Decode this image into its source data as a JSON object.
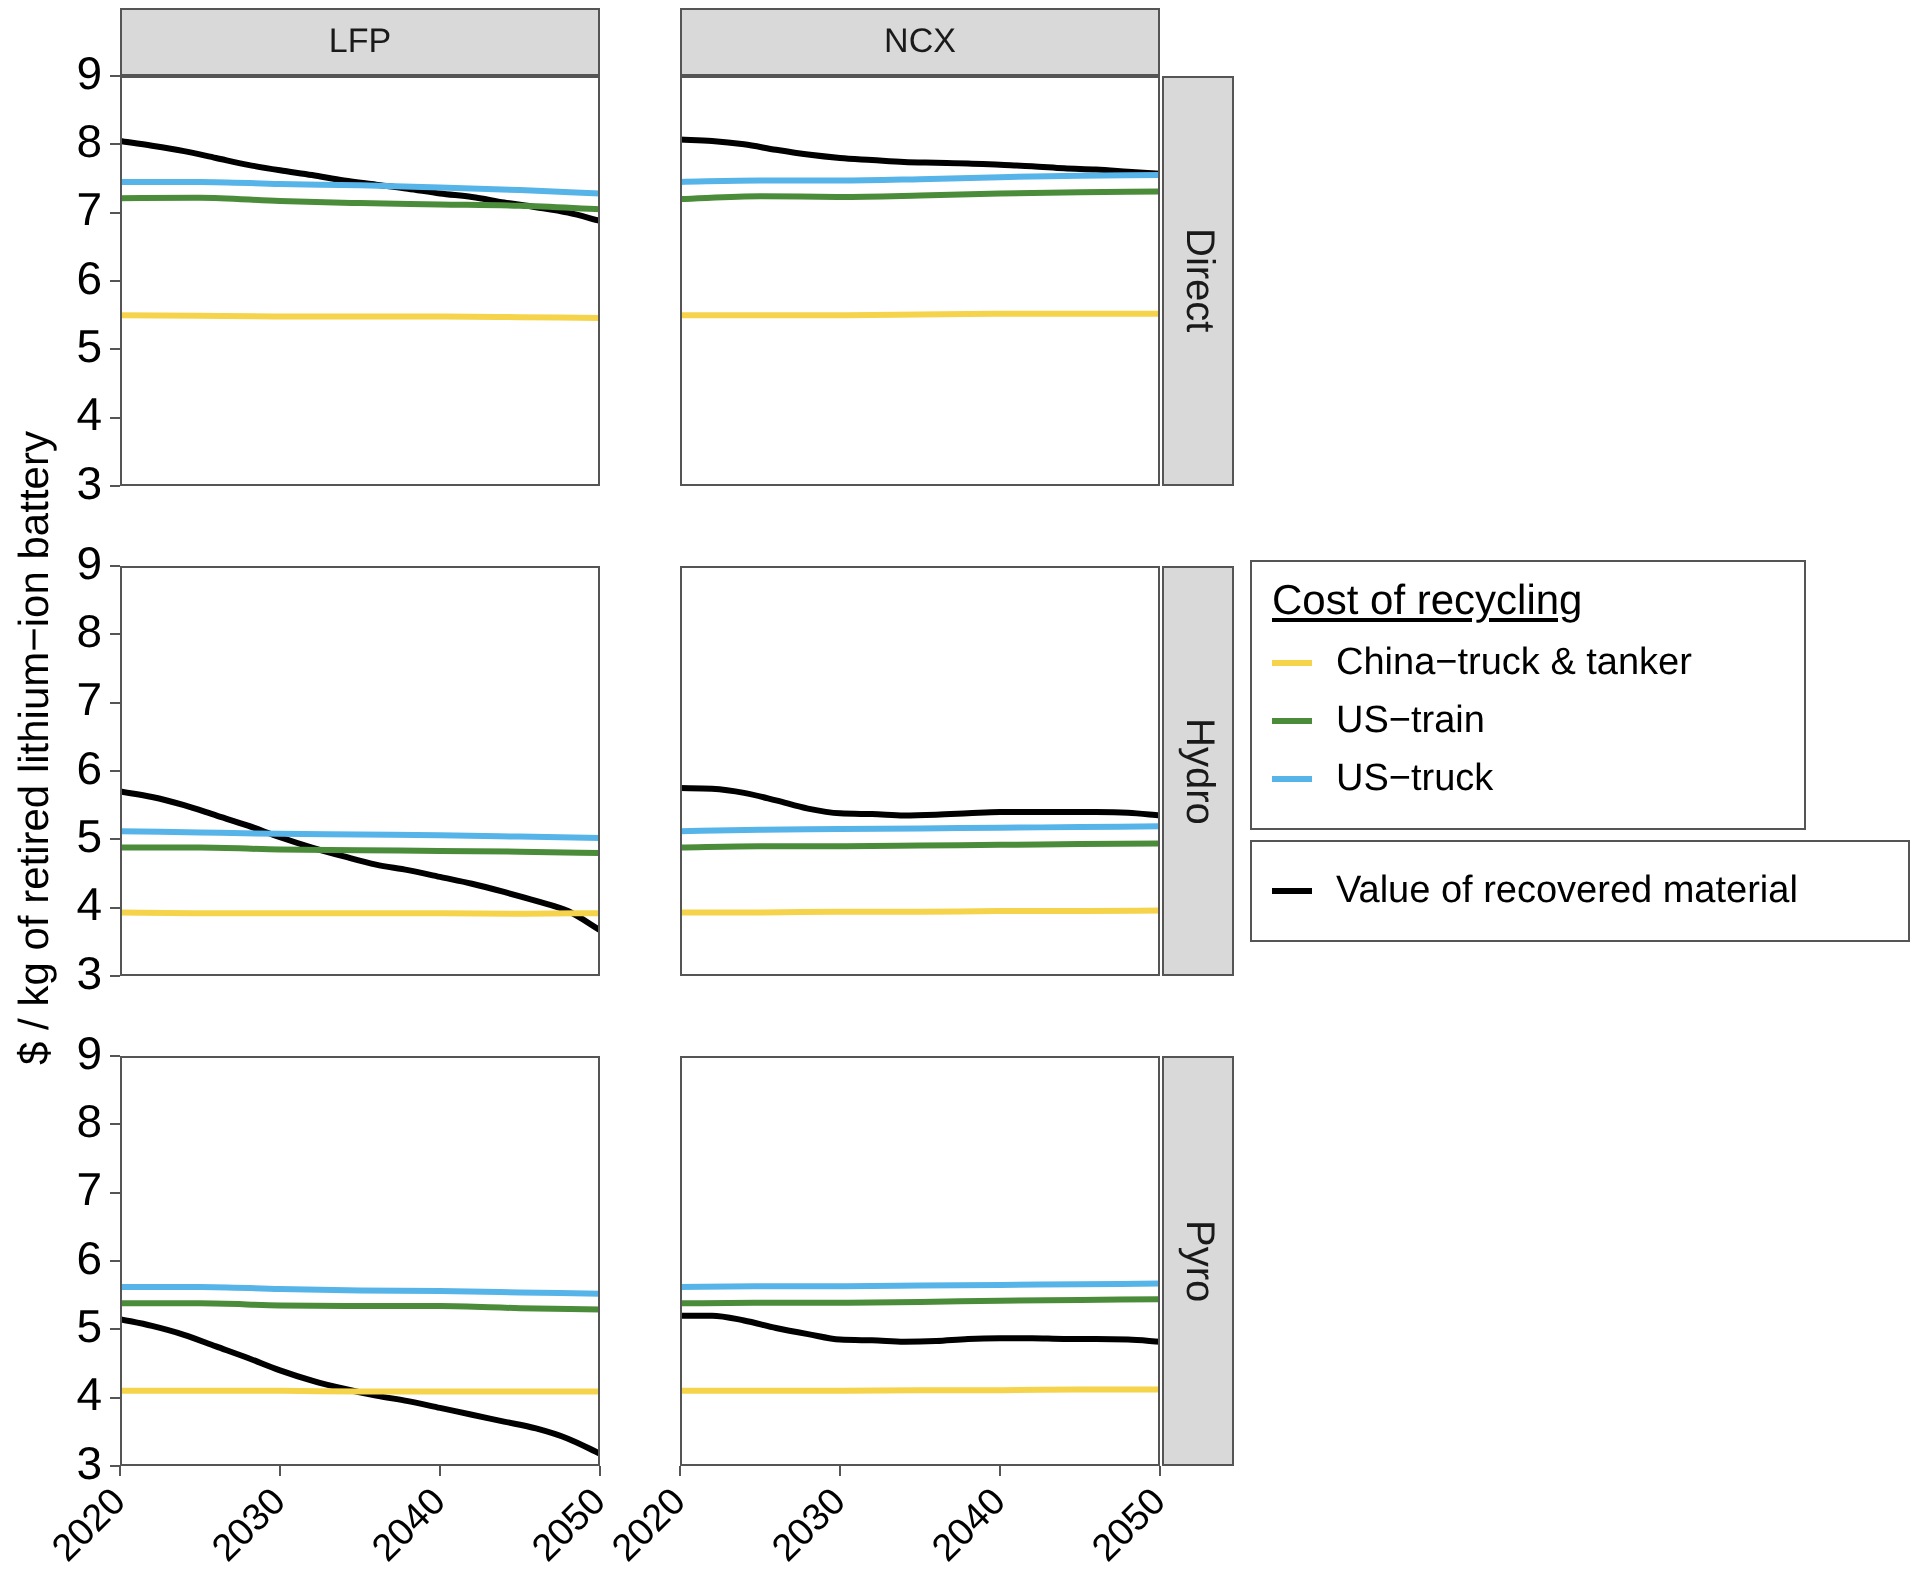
{
  "chart_data": [
    {
      "type": "line",
      "title": "LFP",
      "x": [
        2020,
        2025,
        2030,
        2035,
        2040,
        2045,
        2050
      ],
      "xlim": [
        2020,
        2050
      ],
      "ylim": [
        3,
        9
      ],
      "yticks": [
        3,
        4,
        5,
        6,
        7,
        8,
        9
      ],
      "tick_labels": "y",
      "series": [
        {
          "color": "#f5d44b",
          "values": [
            5.5,
            5.49,
            5.48,
            5.48,
            5.48,
            5.47,
            5.46
          ]
        },
        {
          "color": "#4a8c3a",
          "values": [
            7.21,
            7.22,
            7.17,
            7.14,
            7.12,
            7.1,
            7.05
          ]
        },
        {
          "color": "#56b4e9",
          "values": [
            7.45,
            7.45,
            7.42,
            7.4,
            7.37,
            7.33,
            7.28
          ]
        },
        {
          "color": "#000000",
          "x": [
            2020,
            2022,
            2024,
            2026,
            2028,
            2030,
            2032,
            2034,
            2036,
            2038,
            2040,
            2042,
            2044,
            2046,
            2048,
            2050
          ],
          "values": [
            8.05,
            7.98,
            7.9,
            7.8,
            7.7,
            7.62,
            7.55,
            7.47,
            7.41,
            7.35,
            7.28,
            7.23,
            7.15,
            7.08,
            7.0,
            6.88
          ]
        }
      ]
    },
    {
      "type": "line",
      "title": "NCX",
      "annotations": [
        "Direct"
      ],
      "x": [
        2020,
        2025,
        2030,
        2035,
        2040,
        2045,
        2050
      ],
      "xlim": [
        2020,
        2050
      ],
      "ylim": [
        3,
        9
      ],
      "tick_labels": false,
      "series": [
        {
          "color": "#f5d44b",
          "values": [
            5.5,
            5.5,
            5.5,
            5.51,
            5.52,
            5.52,
            5.52
          ]
        },
        {
          "color": "#4a8c3a",
          "values": [
            7.2,
            7.24,
            7.23,
            7.25,
            7.28,
            7.3,
            7.31
          ]
        },
        {
          "color": "#56b4e9",
          "values": [
            7.45,
            7.47,
            7.47,
            7.49,
            7.52,
            7.54,
            7.55
          ]
        },
        {
          "color": "#000000",
          "x": [
            2020,
            2022,
            2024,
            2026,
            2028,
            2030,
            2032,
            2034,
            2036,
            2038,
            2040,
            2042,
            2044,
            2046,
            2048,
            2050
          ],
          "values": [
            8.07,
            8.05,
            8.0,
            7.92,
            7.85,
            7.8,
            7.77,
            7.74,
            7.73,
            7.72,
            7.7,
            7.68,
            7.65,
            7.63,
            7.6,
            7.57
          ]
        }
      ]
    },
    {
      "type": "line",
      "ylabel": "$ / kg of retired lithium−ion battery",
      "x": [
        2020,
        2025,
        2030,
        2035,
        2040,
        2045,
        2050
      ],
      "xlim": [
        2020,
        2050
      ],
      "ylim": [
        3,
        9
      ],
      "yticks": [
        3,
        4,
        5,
        6,
        7,
        8,
        9
      ],
      "tick_labels": "y",
      "series": [
        {
          "color": "#f5d44b",
          "values": [
            3.93,
            3.92,
            3.92,
            3.92,
            3.92,
            3.91,
            3.92
          ]
        },
        {
          "color": "#4a8c3a",
          "values": [
            4.88,
            4.88,
            4.85,
            4.84,
            4.83,
            4.82,
            4.8
          ]
        },
        {
          "color": "#56b4e9",
          "values": [
            5.12,
            5.1,
            5.08,
            5.07,
            5.06,
            5.04,
            5.02
          ]
        },
        {
          "color": "#000000",
          "x": [
            2020,
            2022,
            2024,
            2026,
            2028,
            2030,
            2032,
            2034,
            2036,
            2038,
            2040,
            2042,
            2044,
            2046,
            2048,
            2050
          ],
          "values": [
            5.7,
            5.62,
            5.5,
            5.35,
            5.2,
            5.03,
            4.88,
            4.75,
            4.63,
            4.55,
            4.45,
            4.35,
            4.23,
            4.1,
            3.95,
            3.67
          ]
        }
      ]
    },
    {
      "type": "line",
      "annotations": [
        "Hydro"
      ],
      "legend": "right",
      "legend_title": "Cost of recycling",
      "x": [
        2020,
        2025,
        2030,
        2035,
        2040,
        2045,
        2050
      ],
      "xlim": [
        2020,
        2050
      ],
      "ylim": [
        3,
        9
      ],
      "tick_labels": false,
      "series": [
        {
          "name": "China−truck & tanker",
          "color": "#f5d44b",
          "values": [
            3.93,
            3.93,
            3.94,
            3.94,
            3.95,
            3.95,
            3.96
          ]
        },
        {
          "name": "US−train",
          "color": "#4a8c3a",
          "values": [
            4.88,
            4.9,
            4.9,
            4.91,
            4.92,
            4.93,
            4.94
          ]
        },
        {
          "name": "US−truck",
          "color": "#56b4e9",
          "values": [
            5.12,
            5.14,
            5.15,
            5.16,
            5.17,
            5.18,
            5.19
          ]
        },
        {
          "name": "Value of recovered material",
          "color": "#000000",
          "x": [
            2020,
            2022,
            2024,
            2026,
            2028,
            2030,
            2032,
            2034,
            2036,
            2038,
            2040,
            2042,
            2044,
            2046,
            2048,
            2050
          ],
          "values": [
            5.75,
            5.74,
            5.68,
            5.57,
            5.45,
            5.38,
            5.37,
            5.35,
            5.36,
            5.38,
            5.4,
            5.4,
            5.4,
            5.4,
            5.39,
            5.35
          ]
        }
      ]
    },
    {
      "type": "line",
      "x": [
        2020,
        2025,
        2030,
        2035,
        2040,
        2045,
        2050
      ],
      "xlim": [
        2020,
        2050
      ],
      "xticks": [
        2020,
        2030,
        2040,
        2050
      ],
      "ylim": [
        3,
        9
      ],
      "yticks": [
        3,
        4,
        5,
        6,
        7,
        8,
        9
      ],
      "series": [
        {
          "color": "#f5d44b",
          "values": [
            4.1,
            4.1,
            4.1,
            4.09,
            4.09,
            4.09,
            4.09
          ]
        },
        {
          "color": "#4a8c3a",
          "values": [
            5.38,
            5.38,
            5.35,
            5.34,
            5.34,
            5.31,
            5.29
          ]
        },
        {
          "color": "#56b4e9",
          "values": [
            5.62,
            5.62,
            5.59,
            5.57,
            5.56,
            5.54,
            5.52
          ]
        },
        {
          "color": "#000000",
          "x": [
            2020,
            2022,
            2024,
            2026,
            2028,
            2030,
            2032,
            2034,
            2036,
            2038,
            2040,
            2042,
            2044,
            2046,
            2048,
            2050
          ],
          "values": [
            5.15,
            5.05,
            4.92,
            4.75,
            4.58,
            4.4,
            4.25,
            4.13,
            4.03,
            3.95,
            3.85,
            3.75,
            3.65,
            3.55,
            3.4,
            3.18
          ]
        }
      ]
    },
    {
      "type": "line",
      "annotations": [
        "Pyro"
      ],
      "x": [
        2020,
        2025,
        2030,
        2035,
        2040,
        2045,
        2050
      ],
      "xlim": [
        2020,
        2050
      ],
      "xticks": [
        2020,
        2030,
        2040,
        2050
      ],
      "ylim": [
        3,
        9
      ],
      "tick_labels": "x",
      "series": [
        {
          "color": "#f5d44b",
          "values": [
            4.1,
            4.1,
            4.1,
            4.11,
            4.11,
            4.12,
            4.12
          ]
        },
        {
          "color": "#4a8c3a",
          "values": [
            5.38,
            5.39,
            5.39,
            5.4,
            5.42,
            5.43,
            5.44
          ]
        },
        {
          "color": "#56b4e9",
          "values": [
            5.62,
            5.63,
            5.63,
            5.64,
            5.65,
            5.66,
            5.67
          ]
        },
        {
          "color": "#000000",
          "x": [
            2020,
            2022,
            2024,
            2026,
            2028,
            2030,
            2032,
            2034,
            2036,
            2038,
            2040,
            2042,
            2044,
            2046,
            2048,
            2050
          ],
          "values": [
            5.2,
            5.2,
            5.13,
            5.02,
            4.93,
            4.85,
            4.84,
            4.82,
            4.83,
            4.86,
            4.87,
            4.87,
            4.86,
            4.86,
            4.85,
            4.82
          ]
        }
      ]
    }
  ]
}
